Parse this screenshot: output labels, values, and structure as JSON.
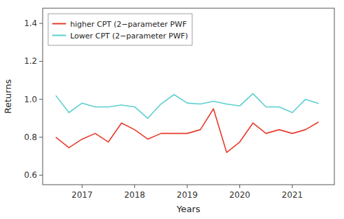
{
  "chart_data": {
    "type": "line",
    "xlabel": "Years",
    "ylabel": "Returns",
    "x": [
      2016.5,
      2016.75,
      2017.0,
      2017.25,
      2017.5,
      2017.75,
      2018.0,
      2018.25,
      2018.5,
      2018.75,
      2019.0,
      2019.25,
      2019.5,
      2019.75,
      2020.0,
      2020.25,
      2020.5,
      2020.75,
      2021.0,
      2021.25,
      2021.5
    ],
    "series": [
      {
        "name": "higher CPT (2−parameter PWF",
        "color": "#e8392a",
        "values": [
          0.8,
          0.745,
          0.79,
          0.82,
          0.775,
          0.875,
          0.84,
          0.79,
          0.82,
          0.82,
          0.82,
          0.84,
          0.95,
          0.72,
          0.775,
          0.875,
          0.82,
          0.84,
          0.82,
          0.84,
          0.88
        ]
      },
      {
        "name": "Lower CPT (2−parameter PWF)",
        "color": "#5bcfcf",
        "values": [
          1.02,
          0.93,
          0.98,
          0.96,
          0.96,
          0.97,
          0.96,
          0.9,
          0.975,
          1.025,
          0.98,
          0.975,
          0.99,
          0.975,
          0.965,
          1.03,
          0.96,
          0.96,
          0.93,
          1.0,
          0.978
        ]
      }
    ],
    "xlim": [
      2016.25,
      2021.8
    ],
    "xticks": [
      2017,
      2018,
      2019,
      2020,
      2021
    ],
    "ylim": [
      0.55,
      1.48
    ],
    "yticks": [
      0.6,
      0.8,
      {
        "value": 1.0,
        "label": "1.0"
      },
      1.2,
      1.4
    ],
    "grid": false,
    "legend": "upper left"
  }
}
